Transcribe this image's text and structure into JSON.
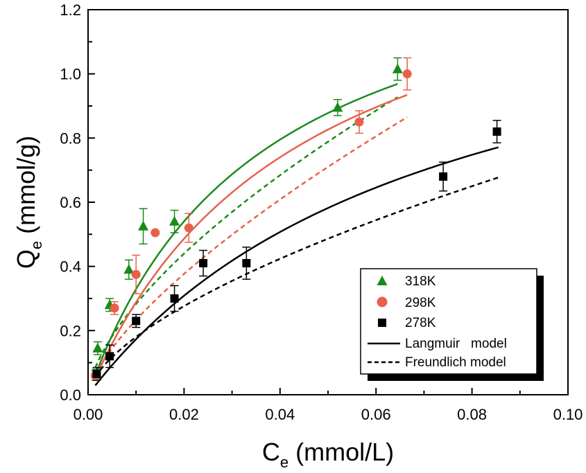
{
  "chart_data": {
    "type": "scatter",
    "xlabel": {
      "main": "C",
      "sub": "e",
      "unit": " (mmol/L)"
    },
    "ylabel": {
      "main": "Q",
      "sub": "e",
      "unit": " (mmol/g)"
    },
    "xlim": [
      0,
      0.1
    ],
    "ylim": [
      0,
      1.2
    ],
    "x_ticks": [
      0.0,
      0.02,
      0.04,
      0.06,
      0.08,
      0.1
    ],
    "x_tick_labels": [
      "0.00",
      "0.02",
      "0.04",
      "0.06",
      "0.08",
      "0.10"
    ],
    "y_ticks": [
      0.0,
      0.2,
      0.4,
      0.6,
      0.8,
      1.0,
      1.2
    ],
    "y_tick_labels": [
      "0.0",
      "0.2",
      "0.4",
      "0.6",
      "0.8",
      "1.0",
      "1.2"
    ],
    "grid": false,
    "legend_position": "bottom-right",
    "legend": [
      {
        "label": "318K",
        "marker": "triangle",
        "color": "#1a8a1a"
      },
      {
        "label": "298K",
        "marker": "circle",
        "color": "#e8604a"
      },
      {
        "label": "278K",
        "marker": "square",
        "color": "#000000"
      },
      {
        "label": "Langmuir   model",
        "line": "solid",
        "color": "#000000"
      },
      {
        "label": "Freundlich model",
        "line": "dashed",
        "color": "#000000"
      }
    ],
    "series": [
      {
        "name": "318K",
        "color": "#1a8a1a",
        "marker": "triangle",
        "x": [
          0.0017,
          0.002,
          0.0045,
          0.0085,
          0.0115,
          0.018,
          0.052,
          0.0645
        ],
        "y": [
          0.065,
          0.145,
          0.28,
          0.39,
          0.525,
          0.54,
          0.895,
          1.015
        ],
        "err": [
          0.015,
          0.02,
          0.02,
          0.03,
          0.055,
          0.035,
          0.025,
          0.035
        ],
        "langmuir": {
          "qm": 1.505,
          "kl": 28.0,
          "x_range": [
            0.0015,
            0.0645
          ]
        },
        "freundlich": {
          "kf": 5.315,
          "n": 1.57,
          "x_range": [
            0.0015,
            0.0645
          ]
        }
      },
      {
        "name": "298K",
        "color": "#e8604a",
        "marker": "circle",
        "x": [
          0.0015,
          0.0055,
          0.01,
          0.014,
          0.021,
          0.0565,
          0.0665
        ],
        "y": [
          0.06,
          0.27,
          0.375,
          0.505,
          0.52,
          0.85,
          1.0
        ],
        "err": [
          0.015,
          0.02,
          0.06,
          0.0,
          0.045,
          0.035,
          0.05
        ],
        "langmuir": {
          "qm": 1.548,
          "kl": 22.9,
          "x_range": [
            0.0015,
            0.0665
          ]
        },
        "freundlich": {
          "kf": 5.645,
          "n": 1.445,
          "x_range": [
            0.0015,
            0.0665
          ]
        }
      },
      {
        "name": "278K",
        "color": "#000000",
        "marker": "square",
        "x": [
          0.0018,
          0.0045,
          0.01,
          0.018,
          0.024,
          0.033,
          0.074,
          0.0852
        ],
        "y": [
          0.065,
          0.12,
          0.23,
          0.3,
          0.41,
          0.41,
          0.68,
          0.82
        ],
        "err": [
          0.02,
          0.035,
          0.02,
          0.04,
          0.04,
          0.05,
          0.045,
          0.035
        ],
        "langmuir": {
          "qm": 1.422,
          "kl": 13.86,
          "x_range": [
            0.0015,
            0.0855
          ]
        },
        "freundlich": {
          "kf": 3.09,
          "n": 1.62,
          "x_range": [
            0.0015,
            0.0855
          ]
        }
      }
    ]
  }
}
